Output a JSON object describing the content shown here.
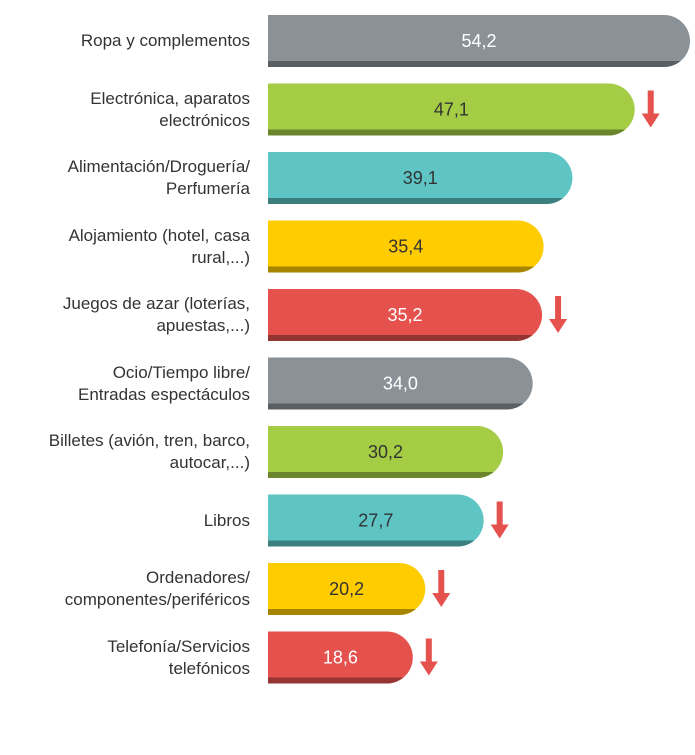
{
  "chart_data": {
    "type": "bar",
    "orientation": "horizontal",
    "categories": [
      "Ropa y complementos",
      "Electrónica, aparatos\nelectrónicos",
      "Alimentación/Droguería/\nPerfumería",
      "Alojamiento (hotel, casa\nrural,...)",
      "Juegos de azar (loterías,\napuestas,...)",
      "Ocio/Tiempo libre/\nEntradas espectáculos",
      "Billetes (avión, tren, barco,\nautocar,...)",
      "Libros",
      "Ordenadores/\ncomponentes/periféricos",
      "Telefonía/Servicios\ntelefónicos"
    ],
    "values": [
      54.2,
      47.1,
      39.1,
      35.4,
      35.2,
      34.0,
      30.2,
      27.7,
      20.2,
      18.6
    ],
    "value_labels": [
      "54,2",
      "47,1",
      "39,1",
      "35,4",
      "35,2",
      "34,0",
      "30,2",
      "27,7",
      "20,2",
      "18,6"
    ],
    "colors": [
      "#8a9298",
      "#a4cc45",
      "#5ec4c4",
      "#ffcc00",
      "#e5524e",
      "#8a9298",
      "#a4cc45",
      "#5ec4c4",
      "#ffcc00",
      "#e5524e"
    ],
    "down_arrows": [
      false,
      true,
      false,
      false,
      true,
      false,
      false,
      true,
      true,
      true
    ],
    "arrow_color": "#e5524e"
  }
}
